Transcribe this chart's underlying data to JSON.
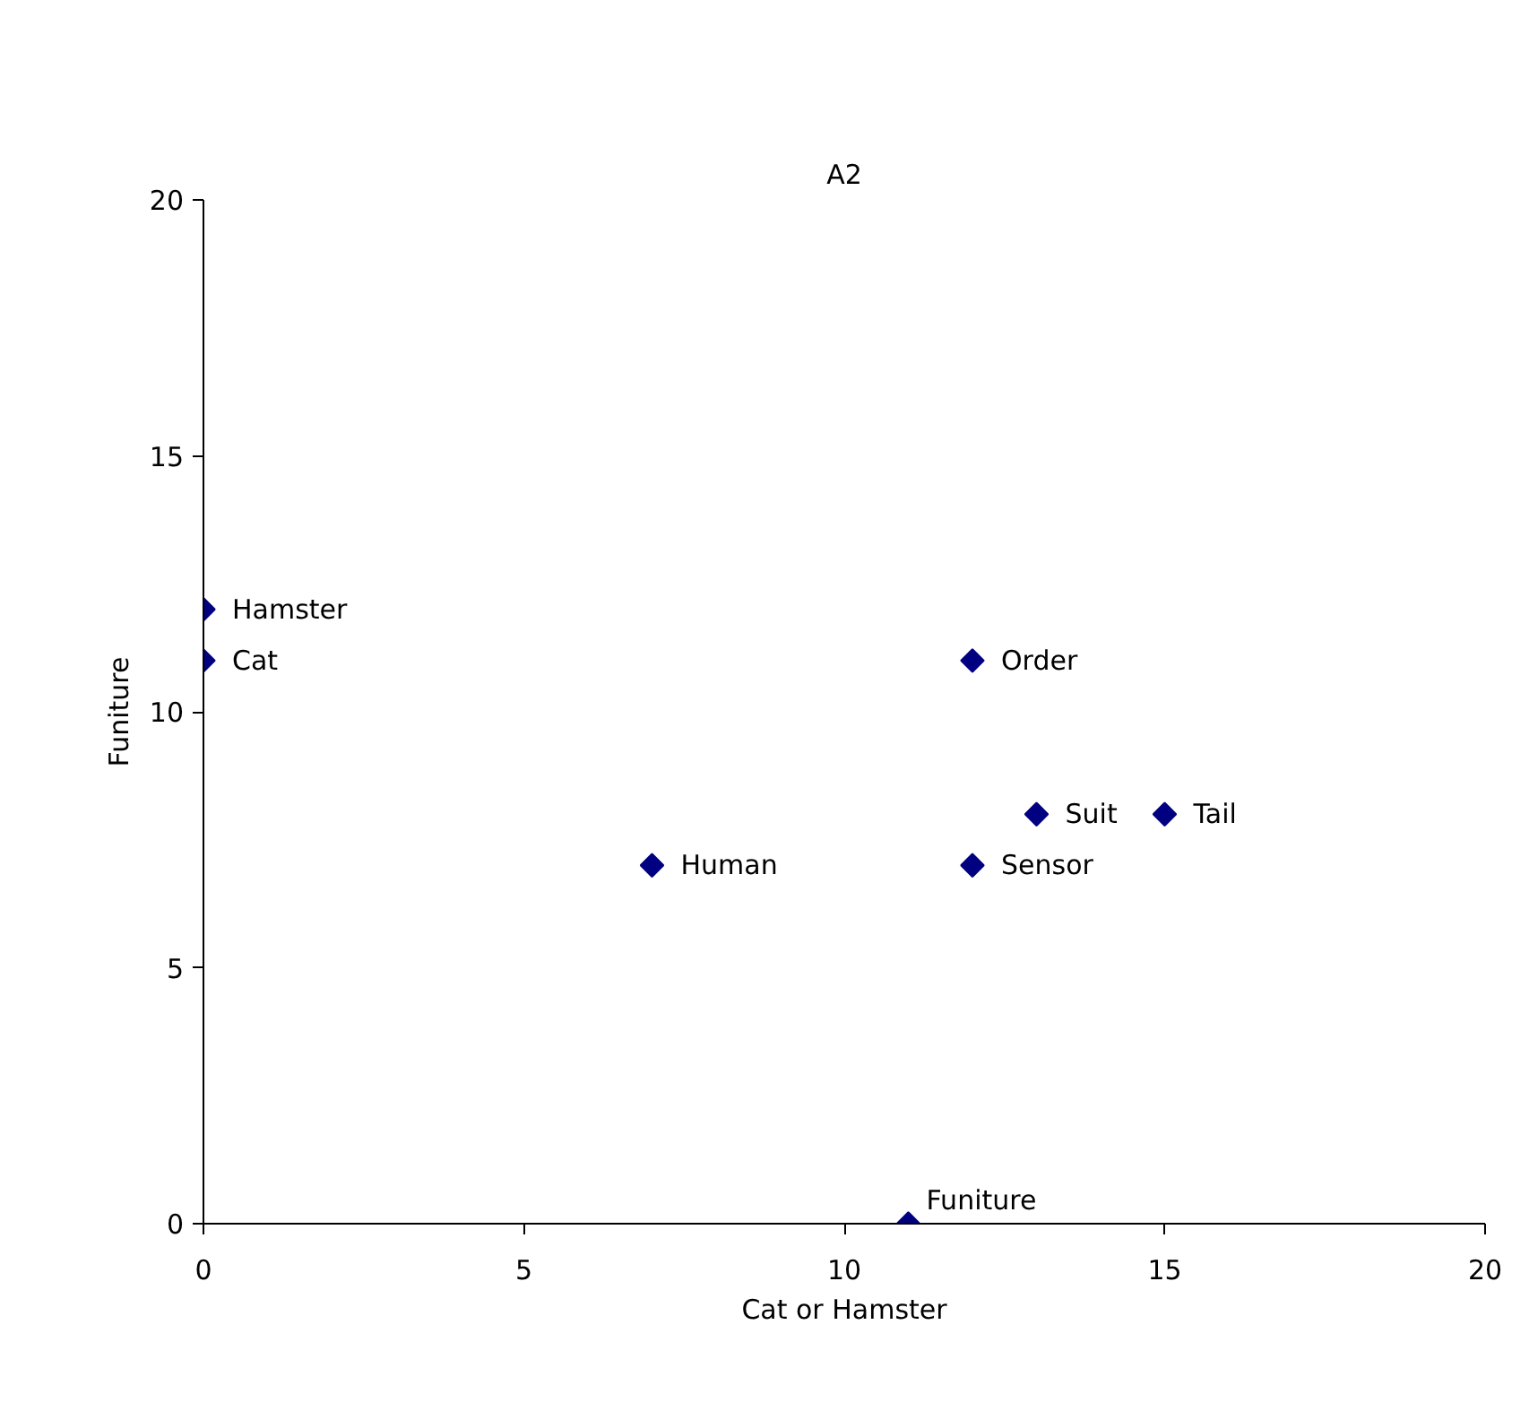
{
  "chart_data": {
    "type": "scatter",
    "title": "A2",
    "xlabel": "Cat or Hamster",
    "ylabel": "Funiture",
    "x": [
      0,
      0,
      7,
      12,
      13,
      15,
      12,
      11
    ],
    "series": [
      {
        "color": "#000080",
        "values": [
          12,
          11,
          7,
          11,
          8,
          8,
          7,
          0
        ]
      }
    ],
    "annotations": [
      {
        "text": "Hamster",
        "x": 0,
        "y": 12
      },
      {
        "text": "Cat",
        "x": 0,
        "y": 11
      },
      {
        "text": "Human",
        "x": 7,
        "y": 7
      },
      {
        "text": "Order",
        "x": 12,
        "y": 11
      },
      {
        "text": "Suit",
        "x": 13,
        "y": 8
      },
      {
        "text": "Tail",
        "x": 15,
        "y": 8
      },
      {
        "text": "Sensor",
        "x": 12,
        "y": 7
      },
      {
        "text": "Funiture",
        "x": 11,
        "y": 0
      }
    ],
    "xlim": [
      0,
      20
    ],
    "ylim": [
      0,
      20
    ],
    "xticks": [
      0,
      5,
      10,
      15,
      20
    ],
    "yticks": [
      0,
      5,
      10,
      15,
      20
    ],
    "grid": false,
    "marker": "diamond"
  }
}
